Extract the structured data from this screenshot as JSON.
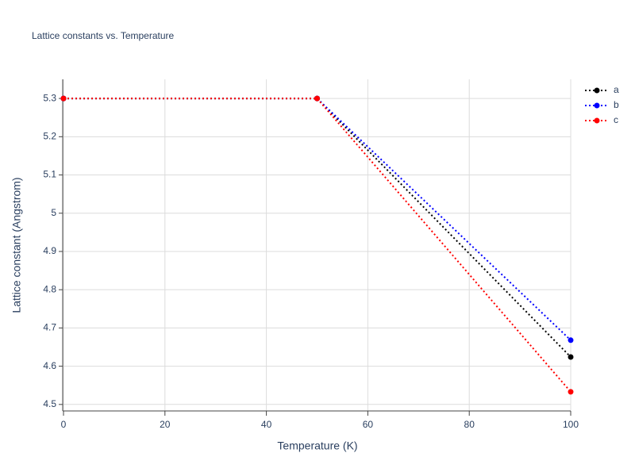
{
  "chart_data": {
    "type": "line",
    "title": "Lattice constants vs. Temperature",
    "x_label": "Temperature (K)",
    "y_label": "Lattice constant (Angstrom)",
    "x": [
      0,
      50,
      100
    ],
    "series": [
      {
        "name": "a",
        "color": "#000000",
        "values": [
          5.3,
          5.3,
          4.624
        ]
      },
      {
        "name": "b",
        "color": "#0000ff",
        "values": [
          5.3,
          5.3,
          4.668
        ]
      },
      {
        "name": "c",
        "color": "#ff0000",
        "values": [
          5.3,
          5.3,
          4.533
        ]
      }
    ],
    "xlim": [
      0,
      100
    ],
    "xticks": [
      0,
      20,
      40,
      60,
      80,
      100
    ],
    "ylim": [
      4.483,
      5.35
    ],
    "yticks": [
      4.5,
      4.6,
      4.7,
      4.8,
      4.9,
      5,
      5.1,
      5.2,
      5.3
    ],
    "grid": true,
    "legend": "top-right"
  }
}
